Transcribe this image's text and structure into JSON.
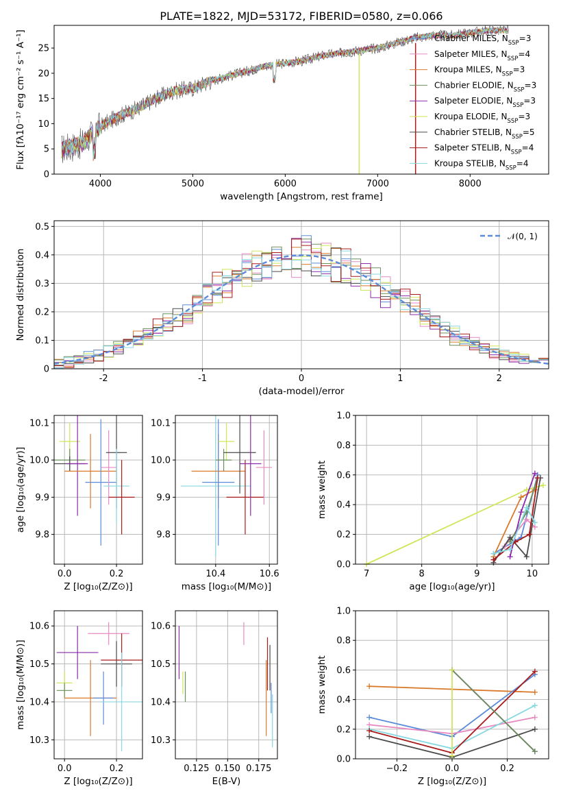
{
  "figure_title": "PLATE=1822, MJD=53172, FIBERID=0580, z=0.066",
  "colors": {
    "Chabrier MILES": "#5b8bd8",
    "Salpeter MILES": "#e68ac0",
    "Kroupa MILES": "#d97a2b",
    "Chabrier ELODIE": "#6a8f5a",
    "Salpeter ELODIE": "#8a2aa8",
    "Kroupa ELODIE": "#cde65a",
    "Chabrier STELIB": "#4a4a4a",
    "Salpeter STELIB": "#a81a1a",
    "Kroupa STELIB": "#86d8e0"
  },
  "chart_data": [
    {
      "id": "spectrum",
      "type": "line",
      "title": "PLATE=1822, MJD=53172, FIBERID=0580, z=0.066",
      "xlabel": "wavelength [Angstrom, rest frame]",
      "ylabel": "Flux [fλ10⁻¹⁷ erg cm⁻² s⁻¹ A⁻¹]",
      "xlim": [
        3500,
        8850
      ],
      "ylim": [
        0,
        29.5
      ],
      "xticks": [
        4000,
        5000,
        6000,
        7000,
        8000
      ],
      "yticks": [
        0,
        5,
        10,
        15,
        20,
        25
      ],
      "legend_position": "right",
      "series": [
        {
          "name": "Chabrier MILES, N_SSP=3",
          "color_key": "Chabrier MILES"
        },
        {
          "name": "Salpeter MILES, N_SSP=4",
          "color_key": "Salpeter MILES"
        },
        {
          "name": "Kroupa MILES, N_SSP=3",
          "color_key": "Kroupa MILES"
        },
        {
          "name": "Chabrier ELODIE, N_SSP=3",
          "color_key": "Chabrier ELODIE"
        },
        {
          "name": "Salpeter ELODIE, N_SSP=3",
          "color_key": "Salpeter ELODIE"
        },
        {
          "name": "Kroupa ELODIE, N_SSP=3",
          "color_key": "Kroupa ELODIE"
        },
        {
          "name": "Chabrier STELIB, N_SSP=5",
          "color_key": "Chabrier STELIB"
        },
        {
          "name": "Salpeter STELIB, N_SSP=4",
          "color_key": "Salpeter STELIB"
        },
        {
          "name": "Kroupa STELIB, N_SSP=4",
          "color_key": "Kroupa STELIB"
        }
      ],
      "continuum": {
        "x": [
          3600,
          3800,
          4000,
          4200,
          4400,
          4600,
          4800,
          5000,
          5200,
          5400,
          5600,
          5800,
          6000,
          6200,
          6400,
          6600,
          6800,
          7000,
          7200,
          7400,
          7600,
          7800,
          8000,
          8200,
          8400
        ],
        "y": [
          5,
          6,
          9.5,
          11.5,
          13,
          15,
          16.5,
          17,
          18.5,
          19.5,
          20.5,
          21.5,
          22,
          22.5,
          23.5,
          24,
          24.5,
          25,
          26,
          27,
          27.5,
          27.5,
          28,
          28.5,
          28.5
        ]
      }
    },
    {
      "id": "residuals",
      "type": "line",
      "xlabel": "(data-model)/error",
      "ylabel": "Normed distribution",
      "xlim": [
        -2.5,
        2.5
      ],
      "ylim": [
        0,
        0.52
      ],
      "xticks": [
        -2,
        -1,
        0,
        1,
        2
      ],
      "yticks": [
        0.0,
        0.1,
        0.2,
        0.3,
        0.4,
        0.5
      ],
      "legend": [
        {
          "label": "𝒩(0, 1)",
          "style": "dashed",
          "color": "#5b8bd8"
        }
      ],
      "legend_position": "top-right",
      "gaussian": {
        "name": "N(0,1)",
        "mean": 0,
        "sigma": 1
      },
      "bin_width": 0.1
    },
    {
      "id": "age_vs_Z",
      "type": "scatter",
      "xlabel": "Z [log₁₀(Z/Z⊙)]",
      "ylabel": "age  [log₁₀(age/yr)]",
      "xlim": [
        -0.04,
        0.3
      ],
      "ylim": [
        9.72,
        10.12
      ],
      "xticks": [
        "0.0",
        "0.2"
      ],
      "yticks": [
        "9.8",
        "9.9",
        "10.0",
        "10.1"
      ],
      "points": [
        {
          "key": "Kroupa ELODIE",
          "x": 0.02,
          "y": 10.05,
          "xerr": 0.04,
          "yerr": 0.05
        },
        {
          "key": "Chabrier ELODIE",
          "x": 0.02,
          "y": 10.0,
          "xerr": 0.06,
          "yerr": 0.03
        },
        {
          "key": "Chabrier STELIB",
          "x": 0.02,
          "y": 9.99,
          "xerr": 0.06,
          "yerr": 0.02
        },
        {
          "key": "Salpeter ELODIE",
          "x": 0.05,
          "y": 9.99,
          "xerr": 0.04,
          "yerr": 0.14
        },
        {
          "key": "Kroupa MILES",
          "x": 0.1,
          "y": 9.97,
          "xerr": 0.1,
          "yerr": 0.1
        },
        {
          "key": "Chabrier MILES",
          "x": 0.14,
          "y": 9.94,
          "xerr": 0.06,
          "yerr": 0.17
        },
        {
          "key": "Salpeter MILES",
          "x": 0.17,
          "y": 9.98,
          "xerr": 0.03,
          "yerr": 0.1
        },
        {
          "key": "Chabrier STELIB",
          "x": 0.2,
          "y": 10.02,
          "xerr": 0.04,
          "yerr": 0.15
        },
        {
          "key": "Kroupa STELIB",
          "x": 0.2,
          "y": 9.93,
          "xerr": 0.05,
          "yerr": 0.1
        },
        {
          "key": "Salpeter STELIB",
          "x": 0.22,
          "y": 9.9,
          "xerr": 0.05,
          "yerr": 0.1
        }
      ]
    },
    {
      "id": "age_vs_mass",
      "type": "scatter",
      "xlabel": "mass [log₁₀(M/M⊙)]",
      "ylabel": "",
      "xlim": [
        10.25,
        10.63
      ],
      "ylim": [
        9.72,
        10.12
      ],
      "xticks": [
        "10.4",
        "10.6"
      ],
      "yticks": [
        "9.8",
        "9.9",
        "10.0",
        "10.1"
      ],
      "points": [
        {
          "key": "Kroupa STELIB",
          "x": 10.4,
          "y": 9.93,
          "xerr": 0.13,
          "yerr": 0.19
        },
        {
          "key": "Kroupa MILES",
          "x": 10.41,
          "y": 9.97,
          "xerr": 0.1,
          "yerr": 0.1
        },
        {
          "key": "Chabrier MILES",
          "x": 10.41,
          "y": 9.94,
          "xerr": 0.06,
          "yerr": 0.17
        },
        {
          "key": "Kroupa ELODIE",
          "x": 10.44,
          "y": 10.05,
          "xerr": 0.03,
          "yerr": 0.05
        },
        {
          "key": "Chabrier ELODIE",
          "x": 10.43,
          "y": 10.0,
          "xerr": 0.03,
          "yerr": 0.03
        },
        {
          "key": "Chabrier STELIB",
          "x": 10.49,
          "y": 10.02,
          "xerr": 0.06,
          "yerr": 0.11
        },
        {
          "key": "Salpeter STELIB",
          "x": 10.51,
          "y": 9.9,
          "xerr": 0.07,
          "yerr": 0.1
        },
        {
          "key": "Salpeter ELODIE",
          "x": 10.53,
          "y": 9.99,
          "xerr": 0.04,
          "yerr": 0.14
        },
        {
          "key": "Salpeter MILES",
          "x": 10.58,
          "y": 9.98,
          "xerr": 0.03,
          "yerr": 0.1
        }
      ]
    },
    {
      "id": "mass_weight_vs_age",
      "type": "line",
      "xlabel": "age  [log₁₀(age/yr)]",
      "ylabel": "mass weight",
      "xlim": [
        6.8,
        10.3
      ],
      "ylim": [
        0,
        1.0
      ],
      "xticks": [
        "7",
        "8",
        "9",
        "10"
      ],
      "yticks": [
        "0.0",
        "0.2",
        "0.4",
        "0.6",
        "0.8",
        "1.0"
      ],
      "series": [
        {
          "key": "Kroupa ELODIE",
          "x": [
            7.0,
            9.9,
            10.2
          ],
          "y": [
            0.0,
            0.5,
            0.53
          ]
        },
        {
          "key": "Chabrier MILES",
          "x": [
            9.3,
            9.8,
            10.1
          ],
          "y": [
            0.07,
            0.18,
            0.6
          ]
        },
        {
          "key": "Salpeter MILES",
          "x": [
            9.5,
            9.9,
            10.05
          ],
          "y": [
            0.12,
            0.3,
            0.25
          ]
        },
        {
          "key": "Kroupa MILES",
          "x": [
            9.3,
            9.8,
            10.05
          ],
          "y": [
            0.05,
            0.45,
            0.5
          ]
        },
        {
          "key": "Chabrier ELODIE",
          "x": [
            9.6,
            9.9,
            10.1
          ],
          "y": [
            0.15,
            0.35,
            0.58
          ]
        },
        {
          "key": "Salpeter ELODIE",
          "x": [
            9.6,
            9.8,
            10.05
          ],
          "y": [
            0.05,
            0.35,
            0.61
          ]
        },
        {
          "key": "Chabrier STELIB",
          "x": [
            9.3,
            9.6,
            9.9,
            10.15
          ],
          "y": [
            0.01,
            0.18,
            0.05,
            0.58
          ]
        },
        {
          "key": "Salpeter STELIB",
          "x": [
            9.3,
            9.7,
            9.95,
            10.1
          ],
          "y": [
            0.03,
            0.15,
            0.2,
            0.58
          ]
        },
        {
          "key": "Kroupa STELIB",
          "x": [
            9.3,
            9.6,
            9.9,
            10.05
          ],
          "y": [
            0.07,
            0.1,
            0.38,
            0.28
          ]
        }
      ]
    },
    {
      "id": "mass_vs_Z",
      "type": "scatter",
      "xlabel": "Z [log₁₀(Z/Z⊙)]",
      "ylabel": "mass [log₁₀(M/M⊙)]",
      "xlim": [
        -0.04,
        0.3
      ],
      "ylim": [
        10.25,
        10.64
      ],
      "xticks": [
        "0.0",
        "0.2"
      ],
      "yticks": [
        "10.3",
        "10.4",
        "10.5",
        "10.6"
      ],
      "points": [
        {
          "key": "Kroupa ELODIE",
          "x": 0.0,
          "y": 10.45,
          "xerr": 0.03,
          "yerr": 0.03
        },
        {
          "key": "Chabrier ELODIE",
          "x": 0.0,
          "y": 10.43,
          "xerr": 0.03,
          "yerr": 0.02
        },
        {
          "key": "Salpeter ELODIE",
          "x": 0.05,
          "y": 10.53,
          "xerr": 0.08,
          "yerr": 0.07
        },
        {
          "key": "Kroupa MILES",
          "x": 0.1,
          "y": 10.41,
          "xerr": 0.1,
          "yerr": 0.1
        },
        {
          "key": "Chabrier MILES",
          "x": 0.15,
          "y": 10.41,
          "xerr": 0.04,
          "yerr": 0.07
        },
        {
          "key": "Salpeter MILES",
          "x": 0.17,
          "y": 10.58,
          "xerr": 0.08,
          "yerr": 0.03
        },
        {
          "key": "Chabrier STELIB",
          "x": 0.2,
          "y": 10.5,
          "xerr": 0.06,
          "yerr": 0.06
        },
        {
          "key": "Salpeter STELIB",
          "x": 0.22,
          "y": 10.51,
          "xerr": 0.08,
          "yerr": 0.07
        },
        {
          "key": "Kroupa STELIB",
          "x": 0.22,
          "y": 10.4,
          "xerr": 0.08,
          "yerr": 0.13
        }
      ]
    },
    {
      "id": "mass_vs_EBV",
      "type": "scatter",
      "xlabel": "E(B-V)",
      "ylabel": "",
      "xlim": [
        0.108,
        0.19
      ],
      "ylim": [
        10.25,
        10.64
      ],
      "xticks": [
        "0.125",
        "0.150",
        "0.175"
      ],
      "yticks": [
        "10.3",
        "10.4",
        "10.5",
        "10.6"
      ],
      "points": [
        {
          "key": "Salpeter ELODIE",
          "x": 0.111,
          "y": 10.53,
          "xerr": 0.0,
          "yerr": 0.07
        },
        {
          "key": "Kroupa ELODIE",
          "x": 0.114,
          "y": 10.45,
          "xerr": 0.0,
          "yerr": 0.03
        },
        {
          "key": "Chabrier ELODIE",
          "x": 0.116,
          "y": 10.44,
          "xerr": 0.0,
          "yerr": 0.04
        },
        {
          "key": "Salpeter MILES",
          "x": 0.163,
          "y": 10.58,
          "xerr": 0.0,
          "yerr": 0.03
        },
        {
          "key": "Kroupa MILES",
          "x": 0.181,
          "y": 10.41,
          "xerr": 0.0,
          "yerr": 0.1
        },
        {
          "key": "Salpeter STELIB",
          "x": 0.182,
          "y": 10.5,
          "xerr": 0.0,
          "yerr": 0.07
        },
        {
          "key": "Chabrier STELIB",
          "x": 0.184,
          "y": 10.49,
          "xerr": 0.0,
          "yerr": 0.06
        },
        {
          "key": "Chabrier MILES",
          "x": 0.185,
          "y": 10.41,
          "xerr": 0.0,
          "yerr": 0.04
        },
        {
          "key": "Kroupa STELIB",
          "x": 0.186,
          "y": 10.35,
          "xerr": 0.0,
          "yerr": 0.07
        }
      ]
    },
    {
      "id": "mass_weight_vs_Z",
      "type": "line",
      "xlabel": "Z [log₁₀(Z/Z⊙)]",
      "ylabel": "mass weight",
      "xlim": [
        -0.35,
        0.35
      ],
      "ylim": [
        0,
        1.0
      ],
      "xticks": [
        "−0.2",
        "0.0",
        "0.2"
      ],
      "yticks": [
        "0.0",
        "0.2",
        "0.4",
        "0.6",
        "0.8",
        "1.0"
      ],
      "series": [
        {
          "key": "Kroupa MILES",
          "x": [
            -0.3,
            0.3
          ],
          "y": [
            0.49,
            0.45
          ]
        },
        {
          "key": "Chabrier MILES",
          "x": [
            -0.3,
            0.0,
            0.3
          ],
          "y": [
            0.28,
            0.15,
            0.57
          ]
        },
        {
          "key": "Salpeter MILES",
          "x": [
            -0.3,
            0.0,
            0.3
          ],
          "y": [
            0.23,
            0.17,
            0.28
          ]
        },
        {
          "key": "Kroupa STELIB",
          "x": [
            -0.3,
            0.0,
            0.3
          ],
          "y": [
            0.2,
            0.07,
            0.36
          ]
        },
        {
          "key": "Salpeter STELIB",
          "x": [
            -0.3,
            0.0,
            0.3
          ],
          "y": [
            0.19,
            0.04,
            0.59
          ]
        },
        {
          "key": "Chabrier STELIB",
          "x": [
            -0.3,
            0.0,
            0.3
          ],
          "y": [
            0.15,
            0.01,
            0.2
          ]
        },
        {
          "key": "Salpeter ELODIE",
          "x": [
            0.0,
            0.3
          ],
          "y": [
            0.6,
            0.05
          ]
        },
        {
          "key": "Chabrier ELODIE",
          "x": [
            0.0,
            0.3
          ],
          "y": [
            0.6,
            0.05
          ]
        },
        {
          "key": "Kroupa ELODIE",
          "x": [
            0.0,
            0.0
          ],
          "y": [
            0.02,
            0.6
          ]
        }
      ]
    }
  ]
}
